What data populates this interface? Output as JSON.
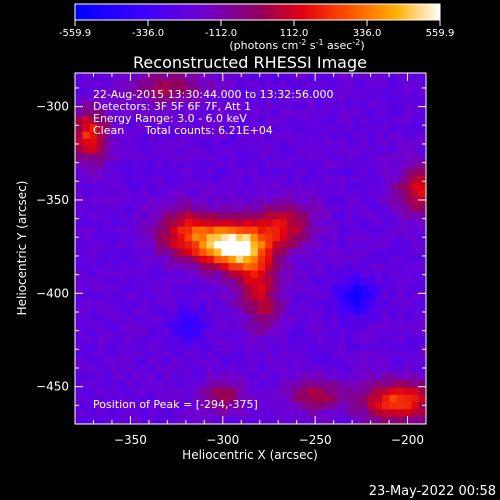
{
  "colorbar": {
    "ticks": [
      "-559.9",
      "-336.0",
      "-112.0",
      "112.0",
      "336.0",
      "559.9"
    ],
    "range": [
      -559.9,
      559.9
    ],
    "units_prefix": "(photons cm",
    "units_sup1": "-2",
    "units_mid1": " s",
    "units_sup2": "-1",
    "units_mid2": " asec",
    "units_sup3": "-2",
    "units_suffix": ")"
  },
  "title": "Reconstructed RHESSI Image",
  "info": {
    "line1": "22-Aug-2015 13:30:44.000 to 13:32:56.000",
    "line2": "Detectors: 3F 5F 6F 7F, Att 1",
    "line3": "Energy Range: 3.0 - 6.0 keV",
    "line4a": "Clean",
    "line4b": "Total counts: 6.21E+04"
  },
  "peak_label": "Position of Peak = [-294,-375]",
  "footer_date": "23-May-2022 00:58",
  "colors": {
    "background": "#000000",
    "text": "#ffffff",
    "low": "#1010ff",
    "mid": "#7a00c0",
    "hot": "#ff3000",
    "max": "#ffffff"
  },
  "chart_data": {
    "type": "heatmap",
    "title": "Reconstructed RHESSI Image",
    "xlabel": "Heliocentric X (arcsec)",
    "ylabel": "Heliocentric Y (arcsec)",
    "xlim": [
      -380,
      -190
    ],
    "ylim": [
      -470,
      -282
    ],
    "x_ticks": [
      -350,
      -300,
      -250,
      -200
    ],
    "y_ticks": [
      -300,
      -350,
      -400,
      -450
    ],
    "x_tick_labels": [
      "−350",
      "−300",
      "−250",
      "−200"
    ],
    "y_tick_labels": [
      "−300",
      "−350",
      "−400",
      "−450"
    ],
    "z_range": [
      -559.9,
      559.9
    ],
    "background_level": -220,
    "sources": [
      {
        "x": -294,
        "y": -375,
        "sx": 12,
        "sy": 8,
        "amp": 780
      },
      {
        "x": -318,
        "y": -368,
        "sx": 13,
        "sy": 9,
        "amp": 420
      },
      {
        "x": -268,
        "y": -364,
        "sx": 12,
        "sy": 9,
        "amp": 330
      },
      {
        "x": -282,
        "y": -392,
        "sx": 9,
        "sy": 11,
        "amp": 300
      },
      {
        "x": -278,
        "y": -410,
        "sx": 6,
        "sy": 9,
        "amp": 180
      },
      {
        "x": -372,
        "y": -315,
        "sx": 7,
        "sy": 10,
        "amp": 420
      },
      {
        "x": -193,
        "y": -345,
        "sx": 9,
        "sy": 9,
        "amp": 360
      },
      {
        "x": -205,
        "y": -458,
        "sx": 14,
        "sy": 8,
        "amp": 460
      },
      {
        "x": -250,
        "y": -455,
        "sx": 10,
        "sy": 6,
        "amp": 280
      },
      {
        "x": -330,
        "y": -290,
        "sx": 14,
        "sy": 6,
        "amp": 250
      },
      {
        "x": -300,
        "y": -455,
        "sx": 8,
        "sy": 6,
        "amp": 240
      },
      {
        "x": -228,
        "y": -402,
        "sx": 7,
        "sy": 7,
        "amp": -260
      },
      {
        "x": -318,
        "y": -418,
        "sx": 6,
        "sy": 6,
        "amp": -180
      }
    ]
  }
}
